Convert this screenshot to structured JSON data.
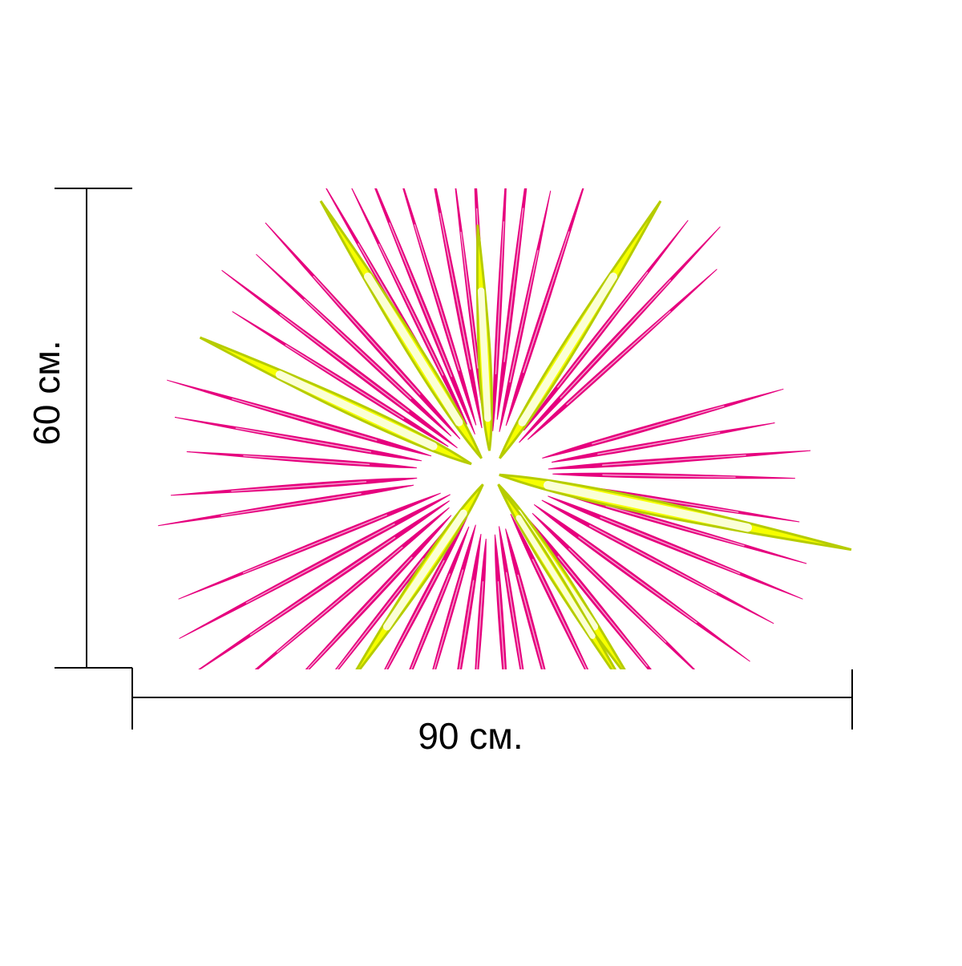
{
  "dimensions": {
    "height_label": "60 см.",
    "width_label": "90 см."
  },
  "artwork": {
    "subject": "starburst-of-spikes",
    "colors": {
      "primary_spike_fill": "#e6007e",
      "primary_spike_highlight": "#f5a0cf",
      "accent_spike_fill": "#f6ff00",
      "accent_spike_highlight": "#fbffd6",
      "accent_spike_outline": "#b6cc00"
    }
  }
}
